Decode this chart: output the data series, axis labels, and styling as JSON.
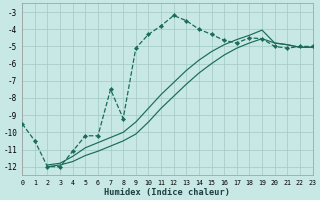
{
  "xlabel": "Humidex (Indice chaleur)",
  "bg_color": "#c8e8e5",
  "grid_color": "#a8cdc9",
  "line_color": "#1a6b5a",
  "xlim": [
    0,
    23
  ],
  "ylim": [
    -12.5,
    -2.5
  ],
  "yticks": [
    -12,
    -11,
    -10,
    -9,
    -8,
    -7,
    -6,
    -5,
    -4,
    -3
  ],
  "xticks": [
    0,
    1,
    2,
    3,
    4,
    5,
    6,
    7,
    8,
    9,
    10,
    11,
    12,
    13,
    14,
    15,
    16,
    17,
    18,
    19,
    20,
    21,
    22,
    23
  ],
  "line1_x": [
    0,
    1,
    2,
    3,
    4,
    5,
    6,
    7,
    8,
    9,
    10,
    11,
    12,
    13,
    14,
    15,
    16,
    17,
    18,
    19,
    20,
    21,
    22,
    23
  ],
  "line1_y": [
    -9.5,
    -10.5,
    -12.0,
    -12.0,
    -11.1,
    -10.2,
    -10.2,
    -7.5,
    -9.2,
    -5.1,
    -4.3,
    -3.8,
    -3.2,
    -3.5,
    -4.0,
    -4.3,
    -4.65,
    -4.8,
    -4.5,
    -4.55,
    -5.0,
    -5.1,
    -5.0,
    -5.0
  ],
  "line2_x": [
    2,
    3,
    4,
    5,
    6,
    7,
    8,
    9,
    10,
    11,
    12,
    13,
    14,
    15,
    16,
    17,
    18,
    19,
    20,
    21,
    22,
    23
  ],
  "line2_y": [
    -11.9,
    -11.8,
    -11.4,
    -10.9,
    -10.6,
    -10.3,
    -10.0,
    -9.4,
    -8.6,
    -7.8,
    -7.1,
    -6.4,
    -5.8,
    -5.3,
    -4.9,
    -4.6,
    -4.35,
    -4.05,
    -4.8,
    -4.9,
    -5.05,
    -5.05
  ],
  "line3_x": [
    2,
    3,
    4,
    5,
    6,
    7,
    8,
    9,
    10,
    11,
    12,
    13,
    14,
    15,
    16,
    17,
    18,
    19,
    20,
    21,
    22,
    23
  ],
  "line3_y": [
    -12.0,
    -11.9,
    -11.7,
    -11.35,
    -11.1,
    -10.8,
    -10.5,
    -10.1,
    -9.4,
    -8.6,
    -7.9,
    -7.2,
    -6.55,
    -6.0,
    -5.5,
    -5.1,
    -4.8,
    -4.55,
    -4.8,
    -4.9,
    -5.05,
    -5.05
  ]
}
